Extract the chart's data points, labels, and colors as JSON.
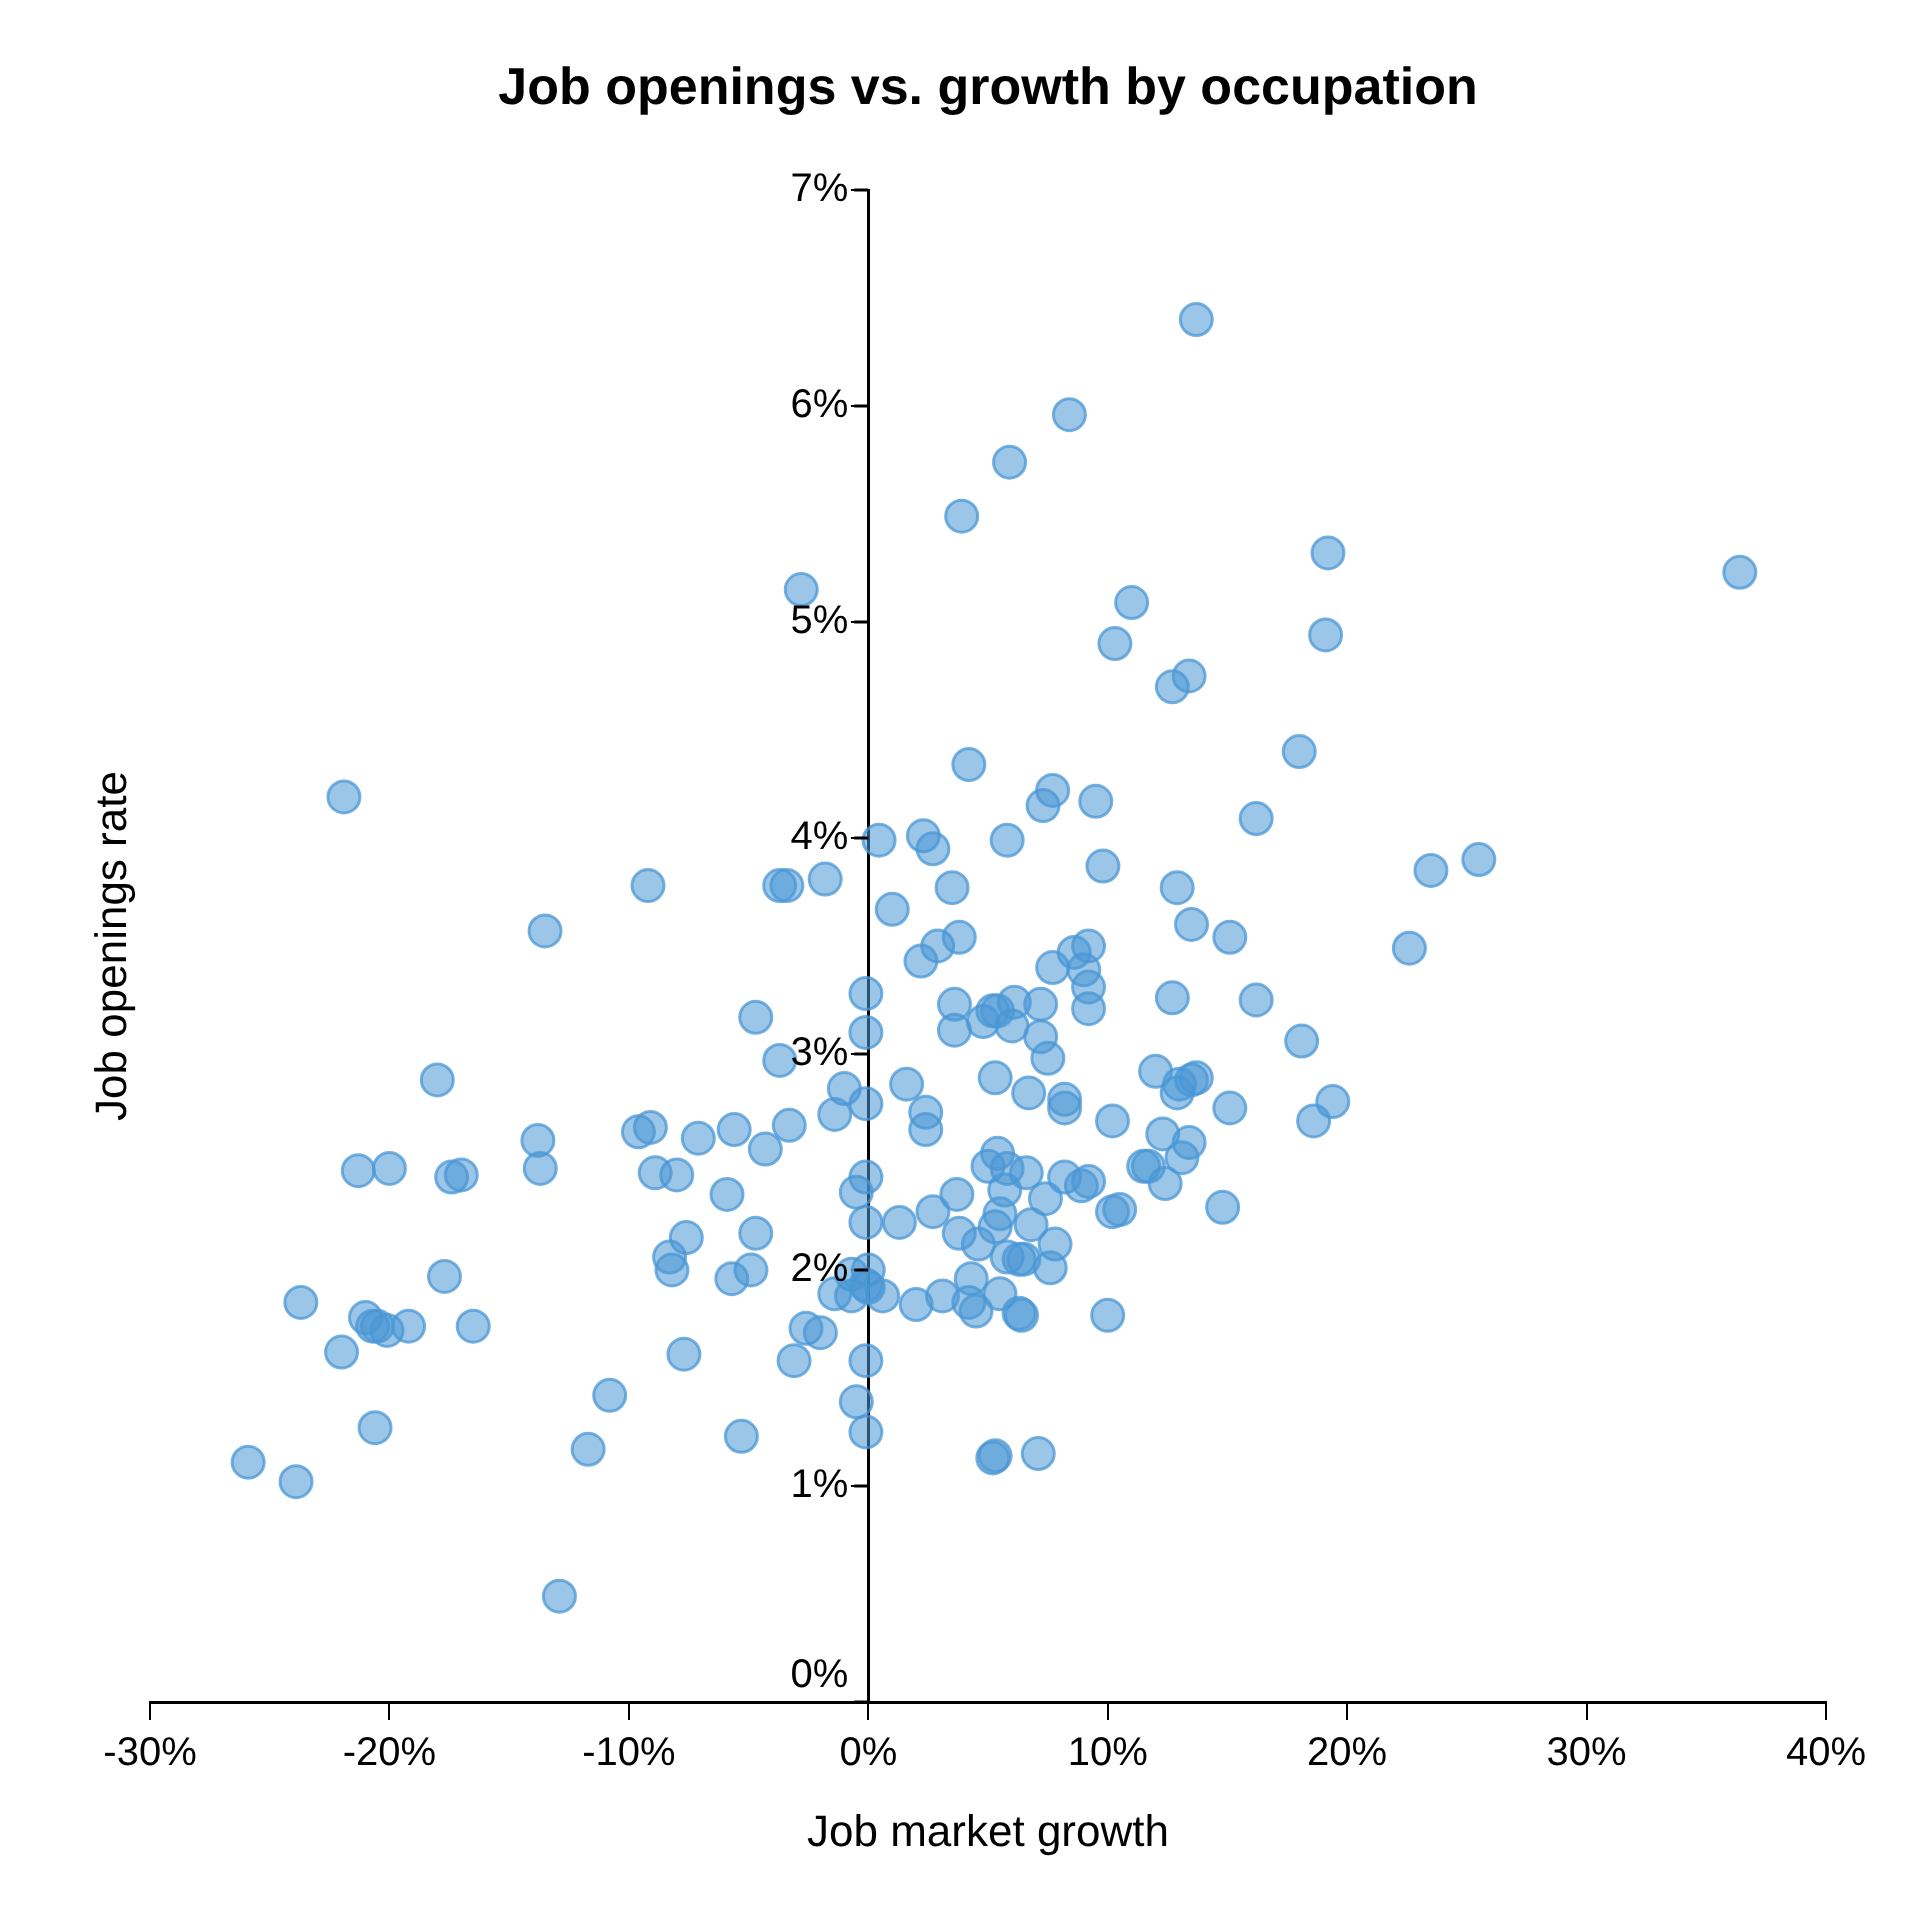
{
  "chart_data": {
    "type": "scatter",
    "title": "Job openings vs. growth by occupation",
    "xlabel": "Job market growth",
    "ylabel": "Job openings rate",
    "marker": "circle",
    "grid": false,
    "xlim": [
      -30,
      40
    ],
    "xticks": [
      {
        "value": -30,
        "label": "-30%"
      },
      {
        "value": -20,
        "label": "-20%"
      },
      {
        "value": -10,
        "label": "-10%"
      },
      {
        "value": 0,
        "label": "0%"
      },
      {
        "value": 10,
        "label": "10%"
      },
      {
        "value": 20,
        "label": "20%"
      },
      {
        "value": 30,
        "label": "30%"
      },
      {
        "value": 40,
        "label": "40%"
      }
    ],
    "ylim": [
      0,
      7
    ],
    "yticks": [
      {
        "value": 0,
        "label": "0%"
      },
      {
        "value": 1,
        "label": "1%"
      },
      {
        "value": 2,
        "label": "2%"
      },
      {
        "value": 3,
        "label": "3%"
      },
      {
        "value": 4,
        "label": "4%"
      },
      {
        "value": 5,
        "label": "5%"
      },
      {
        "value": 6,
        "label": "6%"
      },
      {
        "value": 7,
        "label": "7%"
      }
    ],
    "series": [
      {
        "color": "#4a97d6",
        "x": [
          -21.9,
          -9.2,
          -3.7,
          -3.4,
          -1.8,
          -13.5,
          -4.7,
          -3.7,
          -1.0,
          -0.1,
          -1.4,
          -13.8,
          -13.7,
          -9.6,
          -9.1,
          -7.1,
          -5.6,
          -3.3,
          -4.3,
          -21.3,
          -20.0,
          -17.4,
          -17.0,
          -8.9,
          -8.0,
          -5.9,
          -0.5,
          -0.1,
          -0.1,
          -7.6,
          -4.7,
          -8.3,
          -8.2,
          -5.7,
          -4.9,
          -0.7,
          -1.4,
          -0.7,
          -0.1,
          -17.7,
          -23.7,
          -21.0,
          -20.7,
          -20.5,
          -20.1,
          -19.2,
          -16.5,
          -22.0,
          -2.6,
          -2.0,
          -7.7,
          -3.1,
          -0.1,
          -10.8,
          -0.5,
          -0.1,
          -20.6,
          -5.3,
          -11.7,
          -25.9,
          -23.9,
          -12.9,
          -0.1,
          -0.1,
          -18.0,
          0.45,
          2.3,
          2.7,
          5.8,
          9.5,
          16.2,
          9.8,
          3.5,
          12.9,
          1.0,
          13.5,
          15.1,
          3.8,
          2.9,
          2.2,
          7.7,
          8.6,
          9.2,
          9.0,
          9.2,
          9.2,
          12.7,
          16.2,
          18.1,
          3.6,
          5.2,
          5.4,
          6.1,
          7.2,
          4.8,
          6.0,
          3.6,
          7.2,
          7.5,
          12.0,
          13.0,
          12.9,
          13.5,
          13.7,
          5.3,
          1.6,
          6.7,
          8.2,
          8.2,
          2.4,
          2.4,
          15.1,
          10.2,
          19.4,
          18.6,
          12.3,
          13.4,
          13.1,
          11.5,
          11.7,
          12.4,
          14.8,
          5.4,
          5.0,
          5.8,
          6.6,
          5.7,
          8.2,
          8.9,
          9.2,
          7.4,
          3.7,
          1.3,
          2.7,
          5.5,
          5.3,
          6.8,
          10.2,
          10.5,
          3.8,
          4.6,
          7.8,
          5.8,
          6.3,
          6.5,
          7.6,
          4.3,
          5.5,
          3.1,
          2.0,
          4.2,
          4.5,
          6.3,
          6.4,
          10.0,
          0.6,
          0.0,
          0.0,
          5.2,
          5.3,
          7.1,
          13.7,
          8.4,
          5.9,
          3.9,
          -2.8,
          11.0,
          10.3,
          19.2,
          19.1,
          12.7,
          13.4,
          18.0,
          4.2,
          7.3,
          7.7,
          36.4,
          23.5,
          25.5,
          22.6
        ],
        "values": [
          4.19,
          3.78,
          3.78,
          3.78,
          3.81,
          3.57,
          3.17,
          2.97,
          2.84,
          2.77,
          2.72,
          2.6,
          2.47,
          2.64,
          2.66,
          2.61,
          2.65,
          2.67,
          2.56,
          2.46,
          2.47,
          2.43,
          2.44,
          2.45,
          2.44,
          2.35,
          2.36,
          2.43,
          2.22,
          2.15,
          2.17,
          2.06,
          2.0,
          1.96,
          2.0,
          1.98,
          1.89,
          1.88,
          1.93,
          1.97,
          1.85,
          1.78,
          1.74,
          1.74,
          1.72,
          1.74,
          1.74,
          1.62,
          1.73,
          1.71,
          1.61,
          1.58,
          1.58,
          1.42,
          1.39,
          1.25,
          1.27,
          1.23,
          1.17,
          1.11,
          1.02,
          0.49,
          3.28,
          3.1,
          2.88,
          3.99,
          4.01,
          3.95,
          3.99,
          4.17,
          4.09,
          3.87,
          3.77,
          3.77,
          3.67,
          3.6,
          3.54,
          3.54,
          3.5,
          3.43,
          3.4,
          3.47,
          3.5,
          3.39,
          3.31,
          3.21,
          3.26,
          3.25,
          3.06,
          3.23,
          3.2,
          3.2,
          3.24,
          3.23,
          3.15,
          3.13,
          3.11,
          3.08,
          2.98,
          2.92,
          2.86,
          2.82,
          2.88,
          2.89,
          2.89,
          2.86,
          2.82,
          2.79,
          2.75,
          2.73,
          2.65,
          2.75,
          2.69,
          2.78,
          2.69,
          2.63,
          2.59,
          2.52,
          2.48,
          2.48,
          2.4,
          2.29,
          2.54,
          2.48,
          2.47,
          2.45,
          2.37,
          2.43,
          2.39,
          2.41,
          2.33,
          2.35,
          2.22,
          2.27,
          2.26,
          2.2,
          2.21,
          2.27,
          2.28,
          2.17,
          2.12,
          2.12,
          2.06,
          2.05,
          2.05,
          2.01,
          1.96,
          1.89,
          1.88,
          1.84,
          1.85,
          1.81,
          1.8,
          1.79,
          1.79,
          1.88,
          2.0,
          1.92,
          1.13,
          1.14,
          1.15,
          6.4,
          5.96,
          5.74,
          5.49,
          5.15,
          5.09,
          4.9,
          5.32,
          4.94,
          4.7,
          4.75,
          4.4,
          4.34,
          4.15,
          4.22,
          5.23,
          3.85,
          3.9,
          3.49
        ]
      }
    ]
  }
}
